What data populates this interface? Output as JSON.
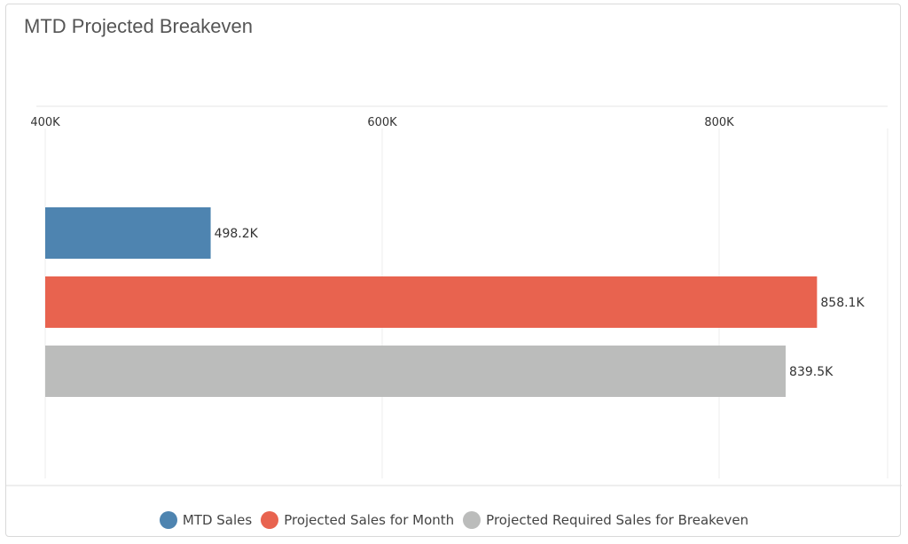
{
  "chart_data": {
    "type": "bar",
    "orientation": "horizontal",
    "title": "MTD Projected Breakeven",
    "xlim": [
      400000,
      900000
    ],
    "x_ticks": [
      {
        "value": 400000,
        "label": "400K"
      },
      {
        "value": 600000,
        "label": "600K"
      },
      {
        "value": 800000,
        "label": "800K"
      }
    ],
    "grid": true,
    "x_axis_position": "top",
    "legend_position": "bottom",
    "series": [
      {
        "name": "MTD Sales",
        "value": 498200,
        "label": "498.2K",
        "color": "#4e84b0"
      },
      {
        "name": "Projected Sales for Month",
        "value": 858100,
        "label": "858.1K",
        "color": "#e8634f"
      },
      {
        "name": "Projected Required Sales for Breakeven",
        "value": 839500,
        "label": "839.5K",
        "color": "#bbbcbb"
      }
    ]
  }
}
